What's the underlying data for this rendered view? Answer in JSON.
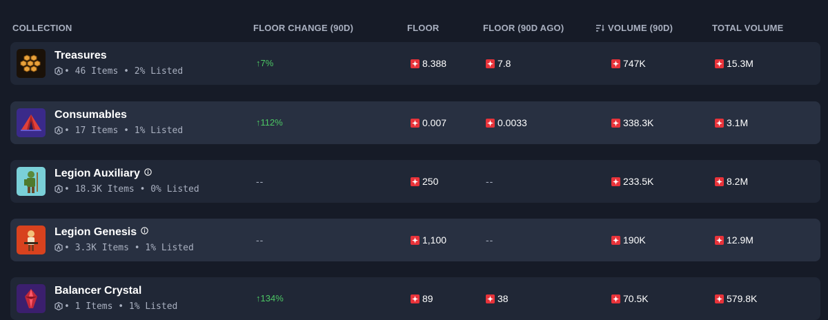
{
  "table": {
    "headers": {
      "collection": "COLLECTION",
      "floor_change": "FLOOR CHANGE (90D)",
      "floor": "FLOOR",
      "floor_90d_ago": "FLOOR (90D AGO)",
      "volume_90d": "VOLUME (90D)",
      "total_volume": "TOTAL VOLUME"
    },
    "sort_icon": "sort-descending-icon",
    "currency_icon": "magic-token-icon",
    "network_icon": "arbitrum-network-icon",
    "rows": [
      {
        "name": "Treasures",
        "meta": "• 46 Items • 2% Listed",
        "has_info": false,
        "floor_change": "↑7%",
        "floor_change_positive": true,
        "floor": "8.388",
        "floor_90d_ago": "7.8",
        "volume_90d": "747K",
        "total_volume": "15.3M",
        "thumb_bg": "#1a1108"
      },
      {
        "name": "Consumables",
        "meta": "• 17 Items • 1% Listed",
        "has_info": false,
        "floor_change": "↑112%",
        "floor_change_positive": true,
        "floor": "0.007",
        "floor_90d_ago": "0.0033",
        "volume_90d": "338.3K",
        "total_volume": "3.1M",
        "thumb_bg": "#3a2a8a"
      },
      {
        "name": "Legion Auxiliary",
        "meta": "• 18.3K Items • 0% Listed",
        "has_info": true,
        "floor_change": "--",
        "floor_change_positive": false,
        "floor": "250",
        "floor_90d_ago": "--",
        "volume_90d": "233.5K",
        "total_volume": "8.2M",
        "thumb_bg": "#7ad0d8"
      },
      {
        "name": "Legion Genesis",
        "meta": "• 3.3K Items • 1% Listed",
        "has_info": true,
        "floor_change": "--",
        "floor_change_positive": false,
        "floor": "1,100",
        "floor_90d_ago": "--",
        "volume_90d": "190K",
        "total_volume": "12.9M",
        "thumb_bg": "#d8421e"
      },
      {
        "name": "Balancer Crystal",
        "meta": "• 1 Items • 1% Listed",
        "has_info": false,
        "floor_change": "↑134%",
        "floor_change_positive": true,
        "floor": "89",
        "floor_90d_ago": "38",
        "volume_90d": "70.5K",
        "total_volume": "579.8K",
        "thumb_bg": "#3b1f6e"
      }
    ]
  },
  "colors": {
    "page_bg": "#161b27",
    "row_bg": "#202736",
    "row_bg_alt": "#283041",
    "header_text": "#a9b0c0",
    "positive": "#4cc764",
    "token": "#e8333a"
  }
}
